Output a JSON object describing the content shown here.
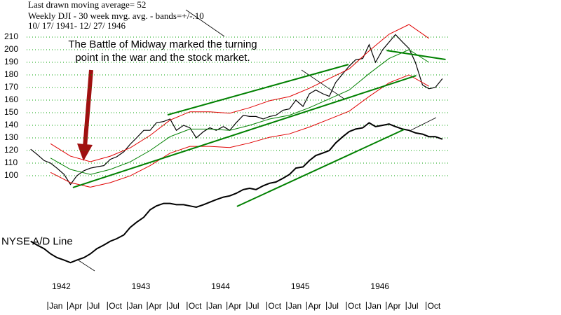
{
  "chart_data": {
    "type": "line",
    "header": [
      "Last drawn moving average= 52",
      "Weekly DJI - 30 week mvg. avg. - bands=+/-.10",
      "10/ 17/ 1941- 12/ 27/ 1946"
    ],
    "annotation": [
      "The Battle of Midway marked the turning",
      "point in the war and the stock market."
    ],
    "annotation_color": "#a01010",
    "xlim": [
      1941.7,
      1947.0
    ],
    "ylim": [
      20,
      225
    ],
    "yticks": [
      100,
      110,
      120,
      130,
      140,
      150,
      160,
      170,
      180,
      190,
      200,
      210
    ],
    "grid": true,
    "grid_color": "#00a000",
    "xticks": [
      {
        "value": 1942.0,
        "label": "Jan"
      },
      {
        "value": 1942.25,
        "label": "Apr"
      },
      {
        "value": 1942.5,
        "label": "Jul"
      },
      {
        "value": 1942.75,
        "label": "Oct"
      },
      {
        "value": 1943.0,
        "label": "Jan"
      },
      {
        "value": 1943.25,
        "label": "Apr"
      },
      {
        "value": 1943.5,
        "label": "Jul"
      },
      {
        "value": 1943.75,
        "label": "Oct"
      },
      {
        "value": 1944.0,
        "label": "Jan"
      },
      {
        "value": 1944.25,
        "label": "Apr"
      },
      {
        "value": 1944.5,
        "label": "Jul"
      },
      {
        "value": 1944.75,
        "label": "Oct"
      },
      {
        "value": 1945.0,
        "label": "Jan"
      },
      {
        "value": 1945.25,
        "label": "Apr"
      },
      {
        "value": 1945.5,
        "label": "Jul"
      },
      {
        "value": 1945.75,
        "label": "Oct"
      },
      {
        "value": 1946.0,
        "label": "Jan"
      },
      {
        "value": 1946.25,
        "label": "Apr"
      },
      {
        "value": 1946.5,
        "label": "Jul"
      },
      {
        "value": 1946.75,
        "label": "Oct"
      }
    ],
    "year_ticks": [
      1942,
      1943,
      1944,
      1945,
      1946
    ],
    "series": [
      {
        "color": "#000000",
        "width": 1.2,
        "x": [
          1941.75,
          1941.83,
          1941.92,
          1942.0,
          1942.08,
          1942.17,
          1942.25,
          1942.33,
          1942.42,
          1942.5,
          1942.58,
          1942.67,
          1942.75,
          1942.83,
          1942.92,
          1943.0,
          1943.08,
          1943.17,
          1943.25,
          1943.33,
          1943.42,
          1943.5,
          1943.58,
          1943.67,
          1943.75,
          1943.83,
          1943.92,
          1944.0,
          1944.08,
          1944.17,
          1944.25,
          1944.33,
          1944.42,
          1944.5,
          1944.58,
          1944.67,
          1944.75,
          1944.83,
          1944.92,
          1945.0,
          1945.08,
          1945.17,
          1945.25,
          1945.33,
          1945.42,
          1945.5,
          1945.58,
          1945.67,
          1945.75,
          1945.83,
          1945.92,
          1946.0,
          1946.08,
          1946.17,
          1946.25,
          1946.33,
          1946.42,
          1946.5,
          1946.58,
          1946.67,
          1946.75,
          1946.83,
          1946.92
        ],
        "values": [
          121,
          117,
          112,
          110,
          106,
          101,
          93,
          100,
          104,
          106,
          107,
          108,
          113,
          115,
          119,
          125,
          130,
          136,
          136,
          142,
          143,
          145,
          136,
          140,
          138,
          130,
          135,
          138,
          136,
          139,
          136,
          142,
          148,
          147,
          147,
          145,
          147,
          148,
          152,
          153,
          160,
          155,
          165,
          168,
          165,
          163,
          174,
          181,
          187,
          192,
          193,
          204,
          190,
          200,
          206,
          212,
          206,
          201,
          190,
          172,
          169,
          170,
          177
        ]
      },
      {
        "color": "#008000",
        "width": 1,
        "x": [
          1942,
          1942.25,
          1942.5,
          1942.75,
          1943,
          1943.25,
          1943.5,
          1943.75,
          1944,
          1944.25,
          1944.5,
          1944.75,
          1945,
          1945.25,
          1945.5,
          1945.75,
          1946,
          1946.25,
          1946.5,
          1946.75
        ],
        "values": [
          114,
          105,
          101,
          105,
          111,
          120,
          131,
          137,
          137,
          136,
          140,
          145,
          148,
          154,
          161,
          168,
          181,
          193,
          200,
          190
        ]
      },
      {
        "color": "#e00000",
        "width": 1,
        "x": [
          1942,
          1942.25,
          1942.5,
          1942.75,
          1943,
          1943.25,
          1943.5,
          1943.75,
          1944,
          1944.25,
          1944.5,
          1944.75,
          1945,
          1945.25,
          1945.5,
          1945.75,
          1946,
          1946.25,
          1946.5,
          1946.75
        ],
        "values": [
          125.4,
          115.5,
          111.1,
          115.5,
          122.1,
          132,
          144.1,
          150.7,
          150.7,
          149.6,
          154,
          159.5,
          162.8,
          169.4,
          177.1,
          184.8,
          199.1,
          212.3,
          220,
          209
        ]
      },
      {
        "color": "#e00000",
        "width": 1,
        "x": [
          1942,
          1942.25,
          1942.5,
          1942.75,
          1943,
          1943.25,
          1943.5,
          1943.75,
          1944,
          1944.25,
          1944.5,
          1944.75,
          1945,
          1945.25,
          1945.5,
          1945.75,
          1946,
          1946.25,
          1946.5,
          1946.75
        ],
        "values": [
          102.6,
          94.5,
          90.9,
          94.5,
          99.9,
          108,
          117.9,
          123.3,
          123.3,
          122.4,
          126,
          130.5,
          133.2,
          138.6,
          144.9,
          151.2,
          162.9,
          173.7,
          180,
          171
        ]
      },
      {
        "name": "NYSE A/D Line",
        "color": "#000000",
        "width": 2,
        "x": [
          1941.75,
          1941.83,
          1941.92,
          1942.0,
          1942.08,
          1942.17,
          1942.25,
          1942.33,
          1942.42,
          1942.5,
          1942.58,
          1942.67,
          1942.75,
          1942.83,
          1942.92,
          1943.0,
          1943.08,
          1943.17,
          1943.25,
          1943.33,
          1943.42,
          1943.5,
          1943.58,
          1943.67,
          1943.75,
          1943.83,
          1943.92,
          1944.0,
          1944.08,
          1944.17,
          1944.25,
          1944.33,
          1944.42,
          1944.5,
          1944.58,
          1944.67,
          1944.75,
          1944.83,
          1944.92,
          1945.0,
          1945.08,
          1945.17,
          1945.25,
          1945.33,
          1945.42,
          1945.5,
          1945.58,
          1945.67,
          1945.75,
          1945.83,
          1945.92,
          1946.0,
          1946.08,
          1946.17,
          1946.25,
          1946.33,
          1946.42,
          1946.5,
          1946.58,
          1946.67,
          1946.75,
          1946.83,
          1946.92
        ],
        "values": [
          48,
          45,
          42,
          38,
          35,
          33,
          31,
          33,
          35,
          38,
          42,
          45,
          48,
          50,
          53,
          59,
          63,
          67,
          73,
          76,
          78,
          78,
          77,
          77,
          76,
          75,
          77,
          79,
          81,
          83,
          84,
          86,
          89,
          90,
          89,
          92,
          94,
          95,
          98,
          101,
          106,
          107,
          112,
          116,
          118,
          120,
          126,
          131,
          135,
          137,
          138,
          142,
          139,
          140,
          141,
          139,
          137,
          136,
          134,
          133,
          131,
          131,
          129
        ]
      }
    ],
    "trendlines": [
      {
        "color": "#008000",
        "x": [
          1942.28,
          1946.59
        ],
        "values": [
          90.6,
          179.4
        ]
      },
      {
        "color": "#008000",
        "x": [
          1943.47,
          1945.74
        ],
        "values": [
          148.3,
          188.3
        ]
      },
      {
        "color": "#008000",
        "x": [
          1946.22,
          1946.96
        ],
        "values": [
          199.4,
          192.2
        ]
      },
      {
        "color": "#008000",
        "x": [
          1944.34,
          1946.44
        ],
        "values": [
          75.6,
          136.7
        ]
      }
    ]
  }
}
